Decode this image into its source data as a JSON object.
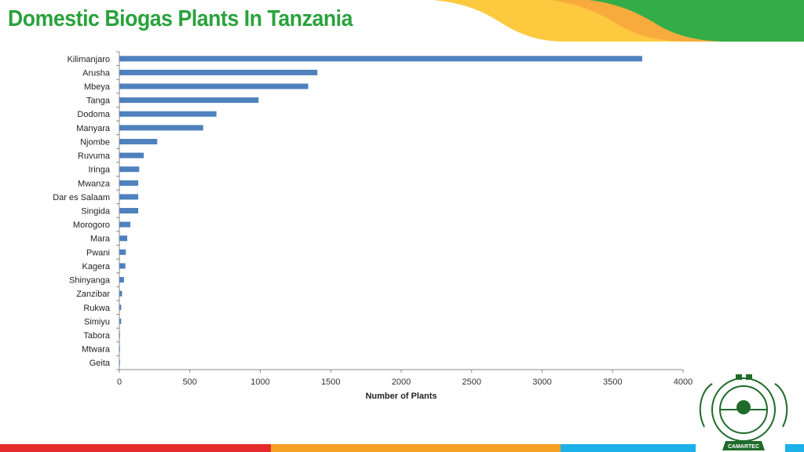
{
  "slide": {
    "title": "Domestic Biogas Plants In Tanzania",
    "logo_text": "CAMARTEC",
    "colors": {
      "title": "#2aa23c",
      "bar": "#4f81bd",
      "yellow": "#fdc93f",
      "orange": "#f8ab3c",
      "green": "#33ad48",
      "red": "#e52a2d",
      "stripe_orange": "#f4a124",
      "cyan": "#1cb1e8"
    }
  },
  "chart_data": {
    "type": "bar",
    "orientation": "horizontal",
    "title": "",
    "xlabel": "Number of Plants",
    "ylabel": "",
    "xlim": [
      0,
      4000
    ],
    "xticks": [
      "0",
      "500",
      "1000",
      "1500",
      "2000",
      "2500",
      "3000",
      "3500",
      "4000"
    ],
    "grid": false,
    "categories": [
      "Kilimanjaro",
      "Arusha",
      "Mbeya",
      "Tanga",
      "Dodoma",
      "Manyara",
      "Njombe",
      "Ruvuma",
      "Iringa",
      "Mwanza",
      "Dar es Salaam",
      "Singida",
      "Morogoro",
      "Mara",
      "Pwani",
      "Kagera",
      "Shinyanga",
      "Zanzibar",
      "Rukwa",
      "Simiyu",
      "Tabora",
      "Mtwara",
      "Geita"
    ],
    "values": [
      3710,
      1405,
      1340,
      988,
      689,
      595,
      269,
      173,
      141,
      134,
      134,
      134,
      78,
      56,
      46,
      43,
      33,
      19,
      13,
      13,
      3,
      2,
      1
    ]
  }
}
